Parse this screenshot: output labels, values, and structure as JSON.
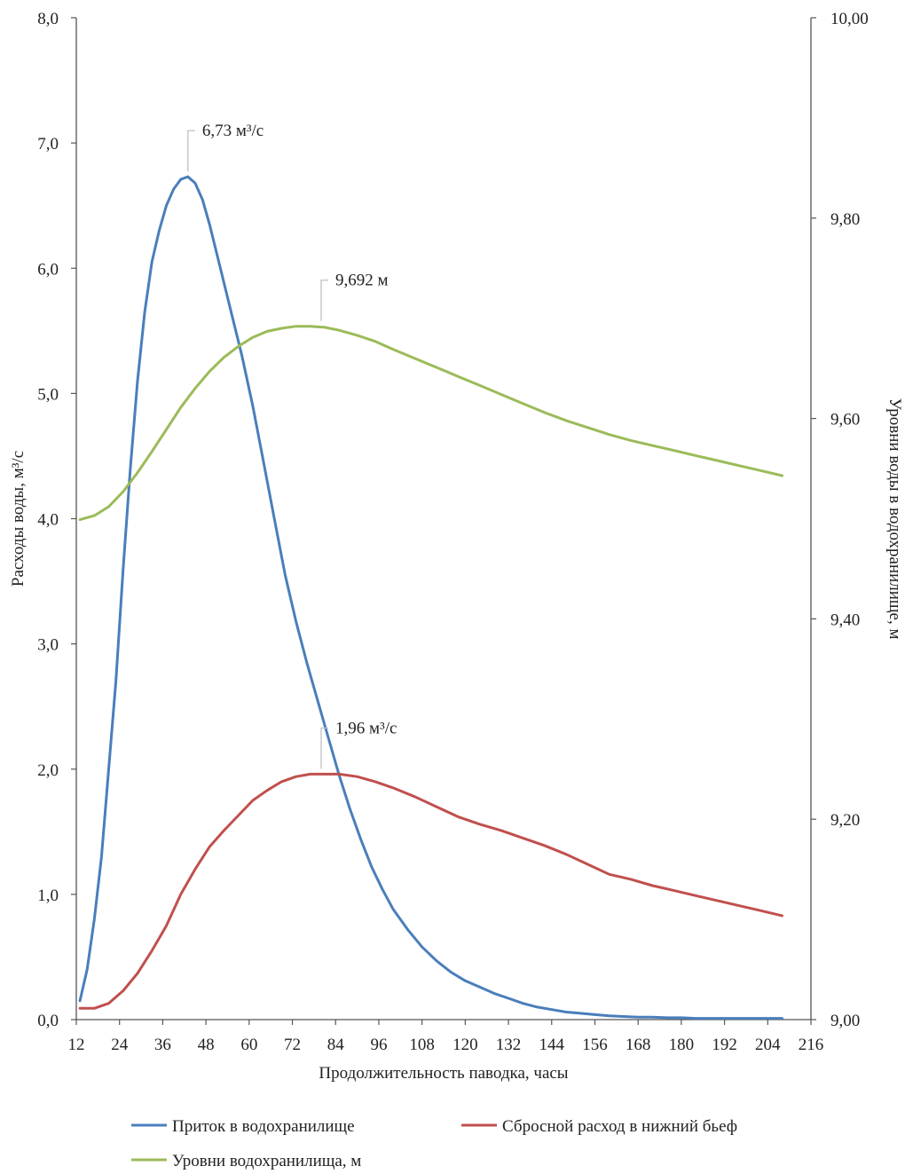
{
  "chart_data": {
    "type": "line",
    "title": "",
    "xlabel": "Продолжительность паводка, часы",
    "ylabel_left": "Расходы воды, м³/с",
    "ylabel_right": "Уровни воды в водохранилище, м",
    "xlim": [
      12,
      216
    ],
    "ylim_left": [
      0,
      8
    ],
    "ylim_right": [
      9.0,
      10.0
    ],
    "x_ticks": [
      "12",
      "24",
      "36",
      "48",
      "60",
      "72",
      "84",
      "96",
      "108",
      "120",
      "132",
      "144",
      "156",
      "168",
      "180",
      "192",
      "204",
      "216"
    ],
    "y_left_ticks": [
      "0,0",
      "1,0",
      "2,0",
      "3,0",
      "4,0",
      "5,0",
      "6,0",
      "7,0",
      "8,0"
    ],
    "y_right_ticks": [
      "9,00",
      "9,20",
      "9,40",
      "9,60",
      "9,80",
      "10,00"
    ],
    "grid": false,
    "legend_position": "bottom",
    "series": [
      {
        "name": "Приток в водохранилище",
        "color": "#4a7ebb",
        "axis": "left",
        "x": [
          13,
          15,
          17,
          19,
          21,
          23,
          25,
          27,
          29,
          31,
          33,
          35,
          37,
          39,
          41,
          43,
          45,
          47,
          49,
          52,
          55,
          58,
          61,
          64,
          67,
          70,
          73,
          76,
          79,
          82,
          85,
          88,
          91,
          94,
          97,
          100,
          104,
          108,
          112,
          116,
          120,
          124,
          128,
          132,
          136,
          140,
          144,
          148,
          152,
          156,
          160,
          164,
          168,
          172,
          176,
          180,
          184,
          188,
          192,
          196,
          200,
          204,
          208
        ],
        "values": [
          0.15,
          0.4,
          0.8,
          1.3,
          2.0,
          2.7,
          3.6,
          4.4,
          5.1,
          5.65,
          6.05,
          6.3,
          6.5,
          6.63,
          6.71,
          6.73,
          6.68,
          6.55,
          6.35,
          6.0,
          5.65,
          5.3,
          4.9,
          4.45,
          4.0,
          3.55,
          3.18,
          2.85,
          2.55,
          2.25,
          1.95,
          1.68,
          1.44,
          1.22,
          1.04,
          0.88,
          0.72,
          0.58,
          0.47,
          0.38,
          0.31,
          0.26,
          0.21,
          0.17,
          0.13,
          0.1,
          0.08,
          0.06,
          0.05,
          0.04,
          0.03,
          0.025,
          0.02,
          0.02,
          0.015,
          0.015,
          0.01,
          0.01,
          0.01,
          0.01,
          0.01,
          0.01,
          0.01
        ]
      },
      {
        "name": "Сбросной расход в нижний бьеф",
        "color": "#c0504d",
        "axis": "left",
        "x": [
          13,
          17,
          21,
          25,
          29,
          33,
          37,
          41,
          45,
          49,
          53,
          57,
          61,
          65,
          69,
          73,
          77,
          81,
          85,
          90,
          95,
          100,
          106,
          112,
          118,
          124,
          130,
          136,
          142,
          148,
          154,
          160,
          166,
          172,
          178,
          184,
          190,
          196,
          202,
          208
        ],
        "values": [
          0.09,
          0.09,
          0.13,
          0.23,
          0.37,
          0.55,
          0.75,
          1.0,
          1.2,
          1.38,
          1.51,
          1.63,
          1.75,
          1.83,
          1.9,
          1.94,
          1.96,
          1.96,
          1.96,
          1.94,
          1.9,
          1.85,
          1.78,
          1.7,
          1.62,
          1.56,
          1.51,
          1.45,
          1.39,
          1.32,
          1.24,
          1.16,
          1.12,
          1.07,
          1.03,
          0.99,
          0.95,
          0.91,
          0.87,
          0.83
        ]
      },
      {
        "name": "Уровни водохранилища, м",
        "color": "#9bbb59",
        "axis": "right",
        "x": [
          13,
          17,
          21,
          25,
          29,
          33,
          37,
          41,
          45,
          49,
          53,
          57,
          61,
          65,
          69,
          73,
          77,
          81,
          85,
          90,
          95,
          100,
          106,
          112,
          118,
          124,
          130,
          136,
          142,
          148,
          154,
          160,
          166,
          172,
          178,
          184,
          190,
          196,
          202,
          208
        ],
        "values": [
          9.499,
          9.503,
          9.512,
          9.527,
          9.546,
          9.567,
          9.589,
          9.611,
          9.63,
          9.647,
          9.661,
          9.672,
          9.681,
          9.687,
          9.69,
          9.692,
          9.692,
          9.691,
          9.688,
          9.683,
          9.677,
          9.669,
          9.66,
          9.651,
          9.642,
          9.633,
          9.624,
          9.615,
          9.606,
          9.598,
          9.591,
          9.584,
          9.578,
          9.573,
          9.568,
          9.563,
          9.558,
          9.553,
          9.548,
          9.543
        ]
      }
    ],
    "annotations": [
      {
        "text": "6,73 м³/с",
        "series": 0,
        "x": 43,
        "y": 6.73
      },
      {
        "text": "9,692 м",
        "series": 2,
        "x": 80,
        "y": 9.692
      },
      {
        "text": "1,96 м³/с",
        "series": 1,
        "x": 80,
        "y": 1.96
      }
    ]
  }
}
